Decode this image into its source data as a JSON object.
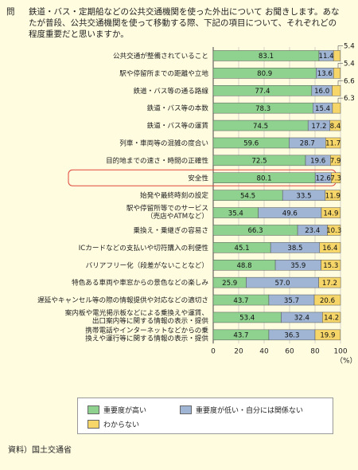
{
  "question": {
    "label": "問",
    "text": "鉄道・バス・定期船などの公共交通機関を使った外出について お聞きします。あなたが普段、公共交通機関を使って移動する際、下記の項目について、それぞれどの程度重要だと思いますか。"
  },
  "colors": {
    "high": "#8fd18f",
    "low": "#9fb5d3",
    "unknown": "#f6d669",
    "highlight": "#e0453a"
  },
  "chart_data": {
    "type": "bar",
    "orientation": "horizontal",
    "stacked": true,
    "categories": [
      [
        "公共交通が整備されていること"
      ],
      [
        "駅や停留所までの距離や立地"
      ],
      [
        "鉄道・バス等の通る路線"
      ],
      [
        "鉄道・バス等の本数"
      ],
      [
        "鉄道・バス等の運賃"
      ],
      [
        "列車・車両等の混雑の度合い"
      ],
      [
        "目的地までの速さ・時間の正確性"
      ],
      [
        "安全性"
      ],
      [
        "始発や最終時刻の設定"
      ],
      [
        "駅や停留所等でのサービス",
        "（売店やATMなど）"
      ],
      [
        "乗換え・乗継ぎの容易さ"
      ],
      [
        "ICカードなどの支払いや切符購入の利便性"
      ],
      [
        "バリアフリー化（段差がないことなど）"
      ],
      [
        "特色ある車両や車窓からの景色などの楽しみ"
      ],
      [
        "遅延やキャンセル等の際の情報提供や対応などの適切さ"
      ],
      [
        "案内板や電光掲示板などによる乗換えや運賃、",
        "出口案内等に関する情報の表示・提供"
      ],
      [
        "携帯電話やインターネットなどからの乗",
        "換えや運行等に関する情報の表示・提供"
      ]
    ],
    "series": [
      {
        "name": "重要度が高い",
        "values": [
          83.1,
          80.9,
          77.4,
          78.3,
          74.5,
          59.6,
          72.5,
          80.1,
          54.5,
          35.4,
          66.3,
          45.1,
          48.8,
          25.9,
          43.7,
          53.4,
          43.7
        ]
      },
      {
        "name": "重要度が低い・自分には関係ない",
        "values": [
          11.4,
          13.6,
          16.0,
          15.4,
          17.2,
          28.7,
          19.6,
          12.6,
          33.5,
          49.6,
          23.4,
          38.5,
          35.9,
          57.0,
          35.7,
          32.4,
          36.3
        ]
      },
      {
        "name": "わからない",
        "values": [
          5.4,
          5.4,
          6.6,
          6.3,
          8.4,
          11.7,
          7.9,
          7.3,
          11.9,
          14.9,
          10.3,
          16.4,
          15.3,
          17.2,
          20.6,
          14.2,
          19.9
        ]
      }
    ],
    "callout_rows": [
      0,
      1,
      2,
      3
    ],
    "highlight_category": "安全性",
    "xlim": [
      0,
      100
    ],
    "xticks": [
      0,
      20,
      40,
      60,
      80,
      100
    ],
    "xlabel": "（%）",
    "grid": true,
    "legend_position": "bottom"
  },
  "source": "資料）国土交通省"
}
